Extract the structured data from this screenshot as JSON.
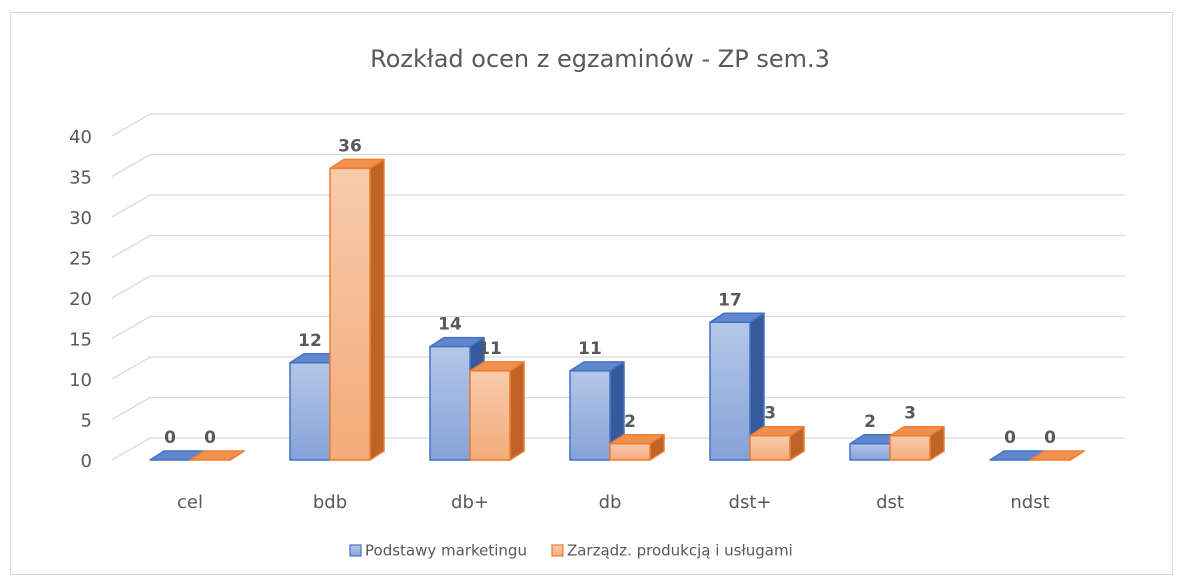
{
  "chart_data": {
    "type": "bar3d",
    "title": "Rozkład ocen z egzaminów - ZP sem.3",
    "categories": [
      "cel",
      "bdb",
      "db+",
      "db",
      "dst+",
      "dst",
      "ndst"
    ],
    "series": [
      {
        "name": "Podstawy marketingu",
        "color": "#4472c4",
        "values": [
          0,
          12,
          14,
          11,
          17,
          2,
          0
        ]
      },
      {
        "name": "Zarządz. produkcją i usługami",
        "color": "#ed7d31",
        "values": [
          0,
          36,
          11,
          2,
          3,
          3,
          0
        ]
      }
    ],
    "ylim": [
      0,
      40
    ],
    "yticks": [
      0,
      5,
      10,
      15,
      20,
      25,
      30,
      35,
      40
    ],
    "grid": true,
    "legend": "bottom"
  }
}
